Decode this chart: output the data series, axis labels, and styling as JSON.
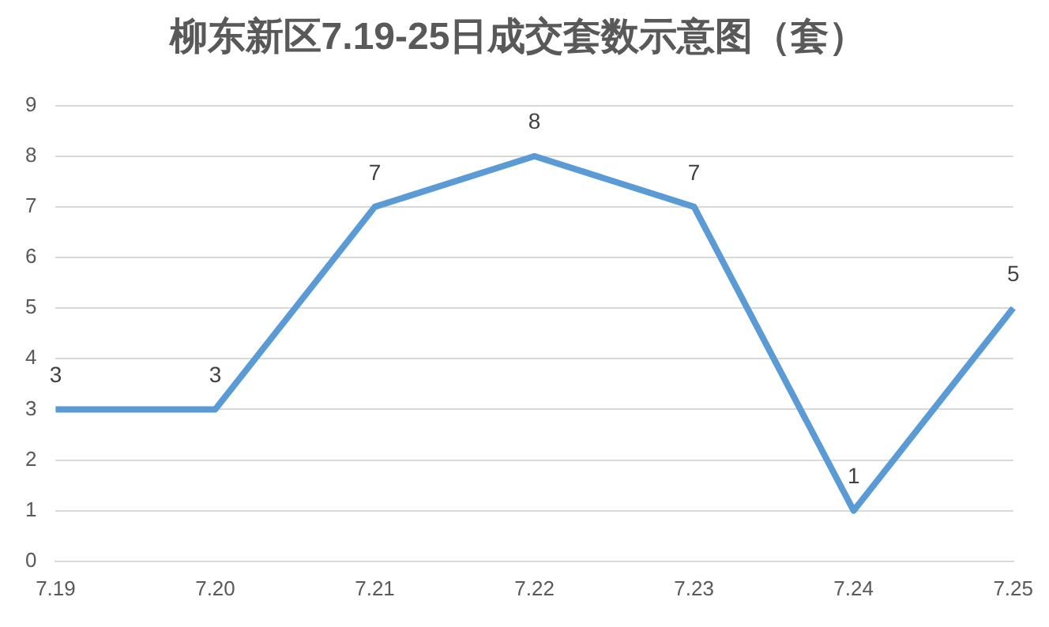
{
  "chart_data": {
    "type": "line",
    "title": "柳东新区7.19-25日成交套数示意图（套）",
    "categories": [
      "7.19",
      "7.20",
      "7.21",
      "7.22",
      "7.23",
      "7.24",
      "7.25"
    ],
    "series": [
      {
        "color": "#5b9bd5",
        "values": [
          3,
          3,
          7,
          8,
          7,
          1,
          5
        ]
      }
    ],
    "ylim": [
      0,
      9
    ],
    "yticks": [
      0,
      1,
      2,
      3,
      4,
      5,
      6,
      7,
      8,
      9
    ],
    "grid": "y",
    "legend": false,
    "marker": "none",
    "line_style": "solid",
    "data_labels": true
  }
}
